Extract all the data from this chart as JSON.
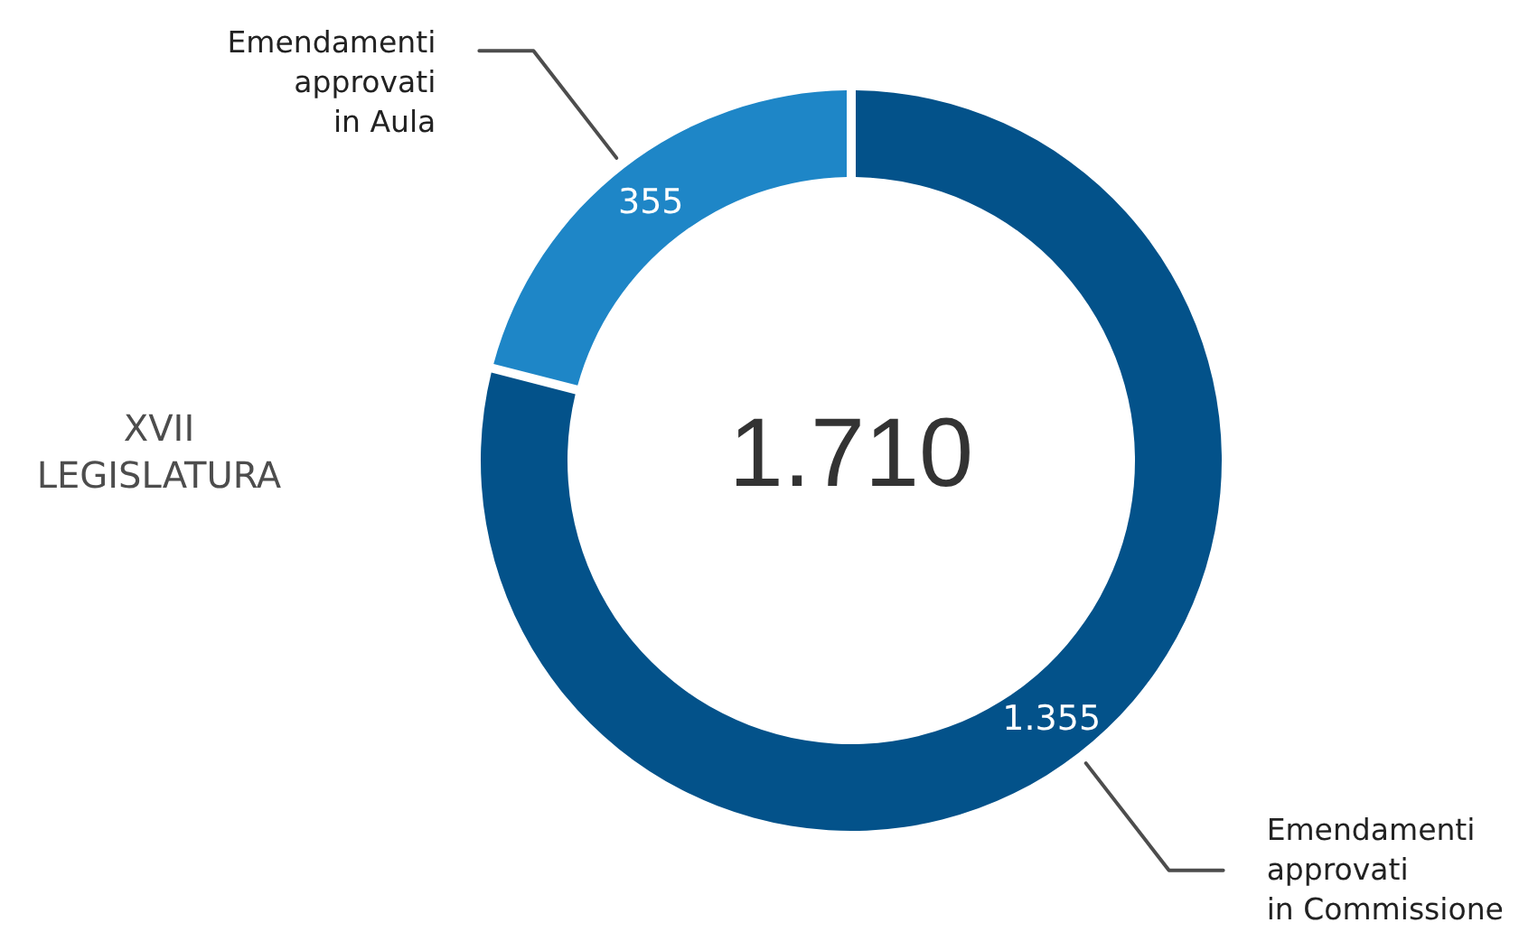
{
  "chart_data": {
    "type": "donut",
    "title": "XVII\nLEGISLATURA",
    "categories": [
      "Emendamenti\napprovati\nin Commissione",
      "Emendamenti\napprovati\nin Aula"
    ],
    "values": [
      1355,
      355
    ],
    "colors": [
      "#03528a",
      "#1e86c7"
    ],
    "value_labels": [
      "1.355",
      "355"
    ],
    "annotations": [
      "1.710"
    ]
  }
}
